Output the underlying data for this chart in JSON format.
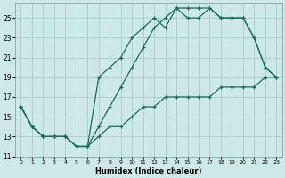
{
  "xlabel": "Humidex (Indice chaleur)",
  "background_color": "#cce8e8",
  "grid_color": "#aacccc",
  "line_color": "#1a6b5a",
  "xlim": [
    -0.5,
    23.5
  ],
  "ylim": [
    11,
    26.5
  ],
  "xticks": [
    0,
    1,
    2,
    3,
    4,
    5,
    6,
    7,
    8,
    9,
    10,
    11,
    12,
    13,
    14,
    15,
    16,
    17,
    18,
    19,
    20,
    21,
    22,
    23
  ],
  "yticks": [
    11,
    13,
    15,
    17,
    19,
    21,
    23,
    25
  ],
  "line1_x": [
    0,
    1,
    2,
    3,
    4,
    5,
    6,
    7,
    8,
    9,
    10,
    11,
    12,
    13,
    14,
    15,
    16,
    17,
    18,
    19,
    20,
    21,
    22,
    23
  ],
  "line1_y": [
    16,
    14,
    13,
    13,
    13,
    12,
    12,
    19,
    20,
    21,
    23,
    24,
    25,
    24,
    26,
    26,
    26,
    26,
    25,
    25,
    25,
    23,
    20,
    19
  ],
  "line2_x": [
    0,
    1,
    2,
    3,
    4,
    5,
    6,
    7,
    8,
    9,
    10,
    11,
    12,
    13,
    14,
    15,
    16,
    17,
    18,
    19,
    20,
    21,
    22,
    23
  ],
  "line2_y": [
    16,
    14,
    13,
    13,
    13,
    12,
    12,
    14,
    16,
    18,
    20,
    22,
    24,
    25,
    26,
    25,
    25,
    26,
    25,
    25,
    25,
    23,
    20,
    19
  ],
  "line3_x": [
    0,
    1,
    2,
    3,
    4,
    5,
    6,
    7,
    8,
    9,
    10,
    11,
    12,
    13,
    14,
    15,
    16,
    17,
    18,
    19,
    20,
    21,
    22,
    23
  ],
  "line3_y": [
    16,
    14,
    13,
    13,
    13,
    12,
    12,
    13,
    14,
    14,
    15,
    16,
    16,
    17,
    17,
    17,
    17,
    17,
    18,
    18,
    18,
    18,
    19,
    19
  ]
}
